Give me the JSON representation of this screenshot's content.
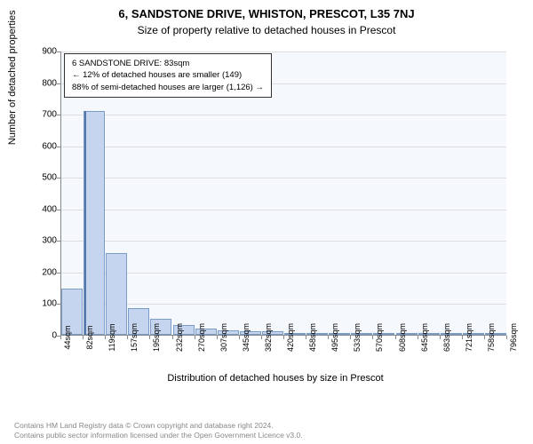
{
  "title": "6, SANDSTONE DRIVE, WHISTON, PRESCOT, L35 7NJ",
  "subtitle": "Size of property relative to detached houses in Prescot",
  "y_label": "Number of detached properties",
  "x_label": "Distribution of detached houses by size in Prescot",
  "chart": {
    "type": "histogram",
    "background_color": "#f5f8fc",
    "bar_fill": "#c5d5f0",
    "bar_stroke": "#7a9cc6",
    "grid_color": "#dddddd",
    "ylim": [
      0,
      900
    ],
    "ytick_step": 100,
    "y_ticks": [
      0,
      100,
      200,
      300,
      400,
      500,
      600,
      700,
      800,
      900
    ],
    "x_ticks": [
      "44sqm",
      "82sqm",
      "119sqm",
      "157sqm",
      "195sqm",
      "232sqm",
      "270sqm",
      "307sqm",
      "345sqm",
      "382sqm",
      "420sqm",
      "458sqm",
      "495sqm",
      "533sqm",
      "570sqm",
      "608sqm",
      "645sqm",
      "683sqm",
      "721sqm",
      "758sqm",
      "796sqm"
    ],
    "bars": [
      145,
      710,
      260,
      85,
      50,
      30,
      20,
      15,
      12,
      10,
      5,
      3,
      3,
      2,
      2,
      2,
      1,
      1,
      1,
      1
    ],
    "highlight_value": 83,
    "highlight_color": "#a0b8e0"
  },
  "info_box": {
    "line1": "6 SANDSTONE DRIVE: 83sqm",
    "line2": "← 12% of detached houses are smaller (149)",
    "line3": "88% of semi-detached houses are larger (1,126) →"
  },
  "footer": {
    "line1": "Contains HM Land Registry data © Crown copyright and database right 2024.",
    "line2": "Contains public sector information licensed under the Open Government Licence v3.0."
  }
}
